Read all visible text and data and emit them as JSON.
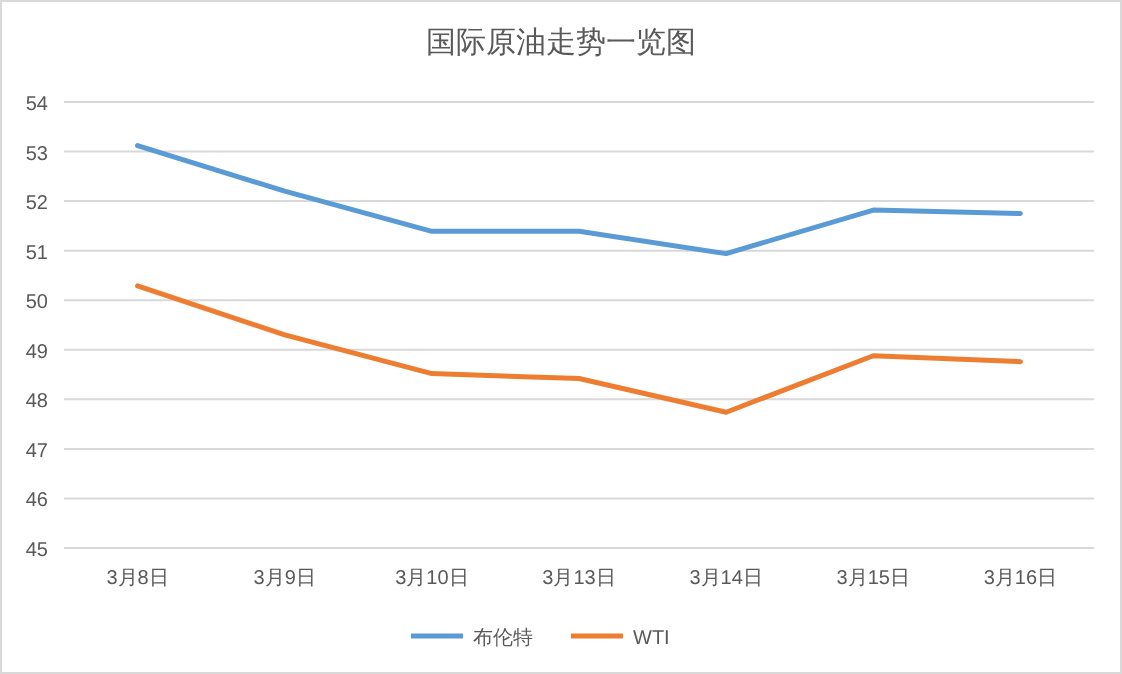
{
  "chart_data": {
    "type": "line",
    "title": "国际原油走势一览图",
    "categories": [
      "3月8日",
      "3月9日",
      "3月10日",
      "3月13日",
      "3月14日",
      "3月15日",
      "3月16日"
    ],
    "series": [
      {
        "name": "布伦特",
        "color": "#5b9bd5",
        "values": [
          53.12,
          52.2,
          51.39,
          51.39,
          50.94,
          51.82,
          51.75
        ]
      },
      {
        "name": "WTI",
        "color": "#ed7d31",
        "values": [
          50.29,
          49.3,
          48.52,
          48.42,
          47.74,
          48.88,
          48.76
        ]
      }
    ],
    "ylim": [
      45,
      54
    ],
    "yticks": [
      45,
      46,
      47,
      48,
      49,
      50,
      51,
      52,
      53,
      54
    ],
    "grid": "y",
    "legend": "bottom",
    "marker": "none",
    "line_style": "solid"
  }
}
